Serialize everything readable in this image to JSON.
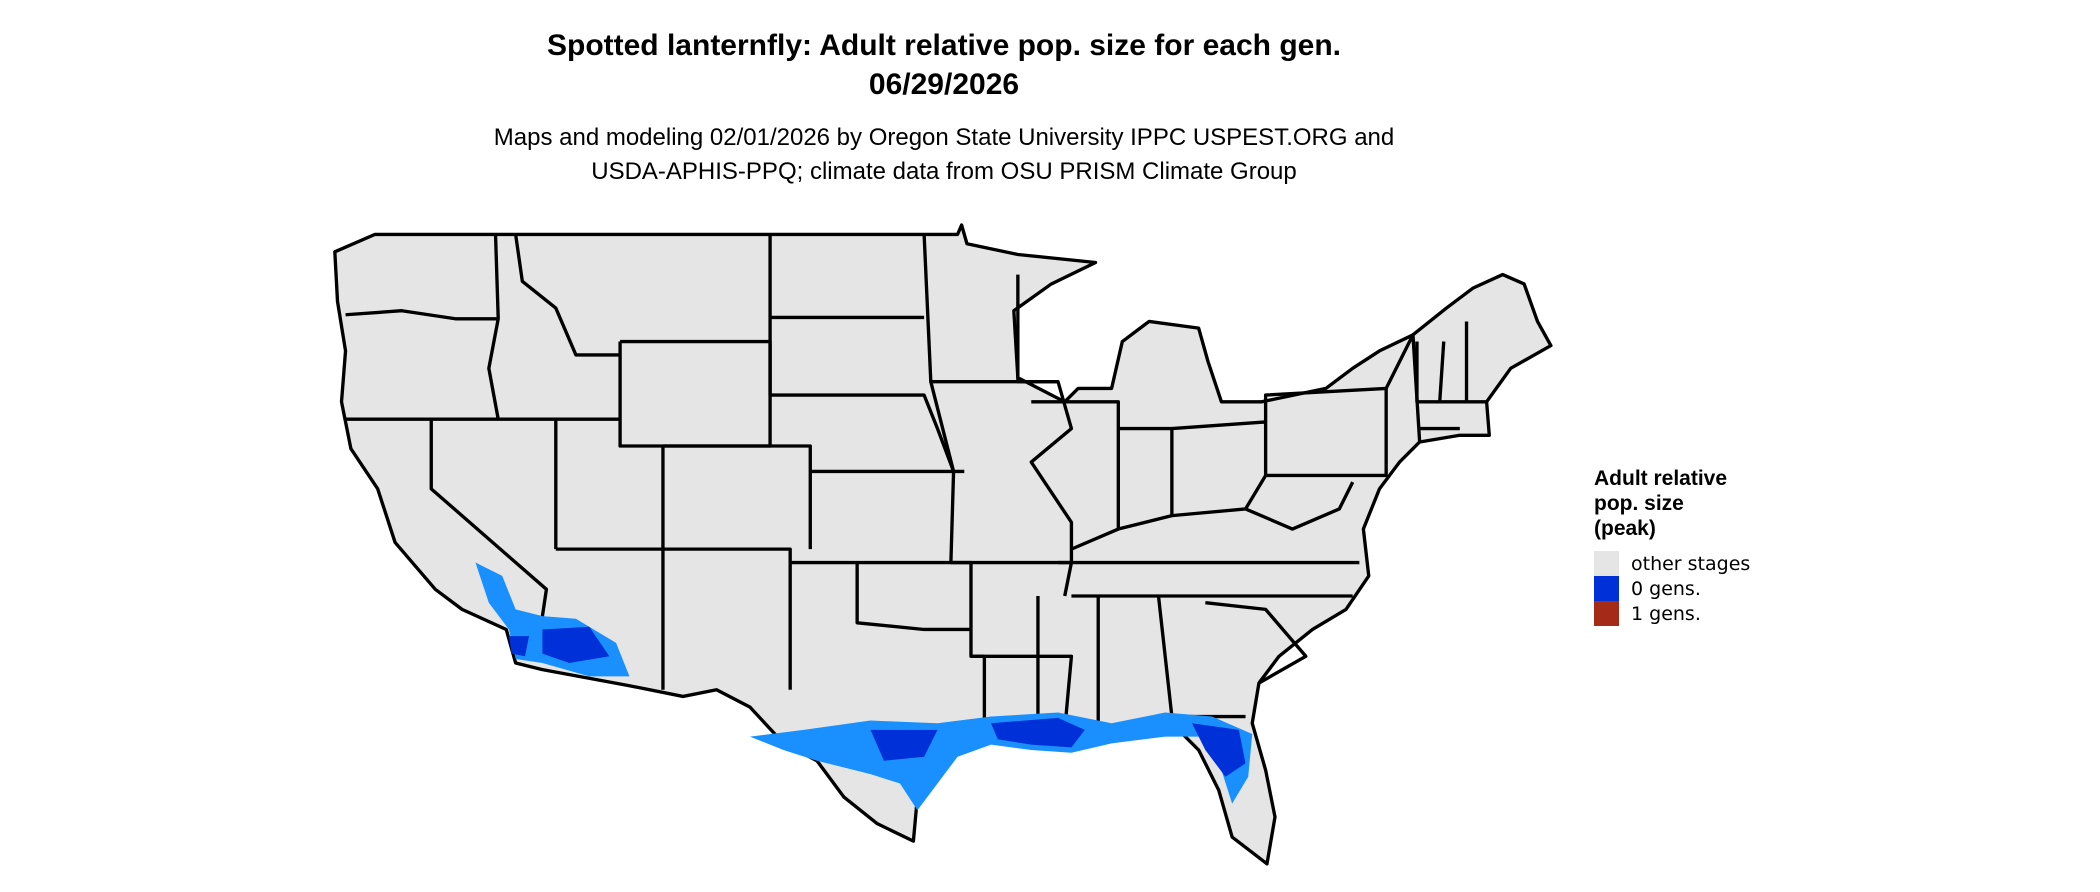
{
  "title": "Spotted lanternfly: Adult relative pop. size for each gen.",
  "date": "06/29/2026",
  "subtitle_line1": "Maps and modeling 02/01/2026 by Oregon State University IPPC USPEST.ORG and",
  "subtitle_line2": "USDA-APHIS-PPQ; climate data from OSU PRISM Climate Group",
  "legend": {
    "title_line1": "Adult relative",
    "title_line2": "pop. size",
    "title_line3": "(peak)",
    "items": [
      {
        "label": "other stages",
        "color": "#e5e5e5"
      },
      {
        "label": "0 gens.",
        "color": "#0030d8"
      },
      {
        "label": "1 gens.",
        "color": "#a52a17"
      }
    ]
  },
  "colors": {
    "land": "#e5e5e5",
    "border": "#000000",
    "zero_gens": "#0030d8",
    "zero_gens_light": "#1a90ff"
  }
}
